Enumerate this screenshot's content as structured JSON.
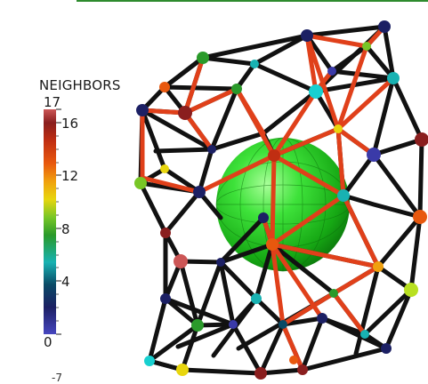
{
  "legend": {
    "title": "NEIGHBORS",
    "range": [
      0,
      17
    ],
    "ticks": [
      {
        "value": 17,
        "label": "17"
      },
      {
        "value": 16,
        "label": "16"
      },
      {
        "value": 12,
        "label": "12"
      },
      {
        "value": 8,
        "label": "8"
      },
      {
        "value": 4,
        "label": "4"
      },
      {
        "value": 0,
        "label": "0"
      }
    ],
    "colormap": [
      "#3a3aa8",
      "#1e2a70",
      "#0a5870",
      "#20b8b8",
      "#2e9a2e",
      "#7cc828",
      "#e8d810",
      "#f0a010",
      "#e85a10",
      "#c03014",
      "#8c2020",
      "#c85050"
    ]
  },
  "corner_label": "-7",
  "colors": {
    "sphere": "#22c922",
    "edge_black": "#111111",
    "edge_red": "#e0401a",
    "accent_bar": "#2e8b2e"
  },
  "icons": [
    "voronoi-network-render",
    "sphere-render"
  ]
}
